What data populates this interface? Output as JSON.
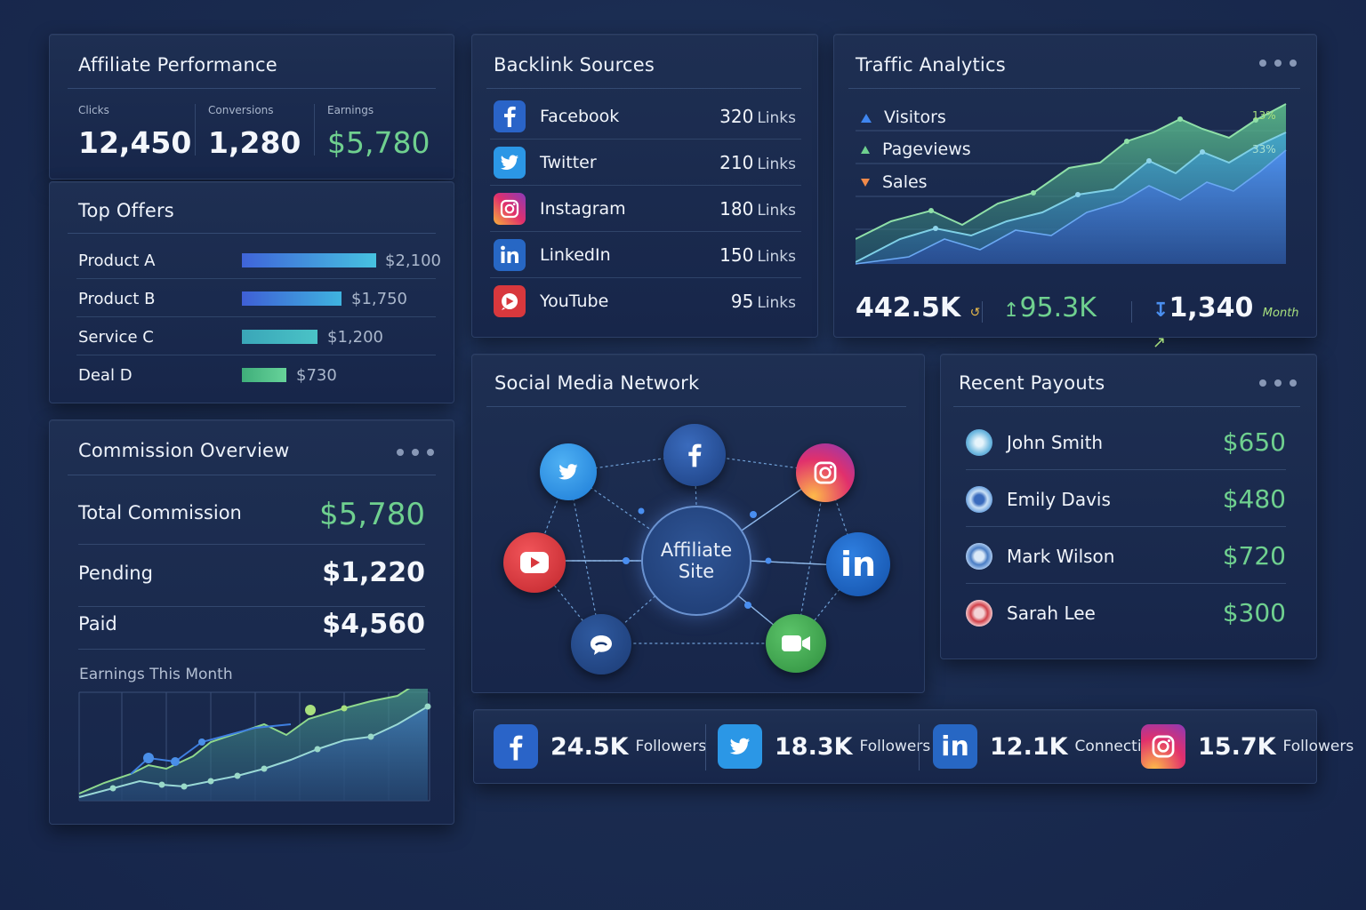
{
  "affiliate_performance": {
    "title": "Affiliate Performance",
    "metrics": [
      {
        "label": "Clicks",
        "value": "12,450"
      },
      {
        "label": "Conversions",
        "value": "1,280"
      },
      {
        "label": "Earnings",
        "value": "$5,780"
      }
    ]
  },
  "top_offers": {
    "title": "Top Offers",
    "items": [
      {
        "name": "Product A",
        "amount": "$2,100",
        "value": 2100
      },
      {
        "name": "Product B",
        "amount": "$1,750",
        "value": 1750
      },
      {
        "name": "Service C",
        "amount": "$1,200",
        "value": 1200
      },
      {
        "name": "Deal D",
        "amount": "$730",
        "value": 730
      }
    ]
  },
  "commission_overview": {
    "title": "Commission Overview",
    "total_label": "Total Commission",
    "total_value": "$5,780",
    "pending_label": "Pending",
    "pending_value": "$1,220",
    "paid_label": "Paid",
    "paid_value": "$4,560",
    "chart_title": "Earnings This Month"
  },
  "backlink_sources": {
    "title": "Backlink Sources",
    "unit": "Links",
    "items": [
      {
        "name": "Facebook",
        "count": "320",
        "icon": "facebook-icon"
      },
      {
        "name": "Twitter",
        "count": "210",
        "icon": "twitter-icon"
      },
      {
        "name": "Instagram",
        "count": "180",
        "icon": "instagram-icon"
      },
      {
        "name": "LinkedIn",
        "count": "150",
        "icon": "linkedin-icon"
      },
      {
        "name": "YouTube",
        "count": "95",
        "icon": "youtube-icon"
      }
    ]
  },
  "traffic_analytics": {
    "title": "Traffic Analytics",
    "legend": [
      "Visitors",
      "Pageviews",
      "Sales"
    ],
    "side_labels": [
      "13%",
      "33%"
    ],
    "stats": [
      {
        "value": "442.5K"
      },
      {
        "value": "95.3K"
      },
      {
        "value": "1,340",
        "suffix": "Month"
      }
    ]
  },
  "social_network": {
    "title": "Social Media Network",
    "center_line1": "Affiliate",
    "center_line2": "Site"
  },
  "recent_payouts": {
    "title": "Recent Payouts",
    "items": [
      {
        "name": "John Smith",
        "amount": "$650"
      },
      {
        "name": "Emily Davis",
        "amount": "$480"
      },
      {
        "name": "Mark Wilson",
        "amount": "$720"
      },
      {
        "name": "Sarah Lee",
        "amount": "$300"
      }
    ]
  },
  "social_followers": [
    {
      "value": "24.5K",
      "label": "Followers",
      "icon": "facebook-icon"
    },
    {
      "value": "18.3K",
      "label": "Followers",
      "icon": "twitter-icon"
    },
    {
      "value": "12.1K",
      "label": "Connections",
      "icon": "linkedin-icon"
    },
    {
      "value": "15.7K",
      "label": "Followers",
      "icon": "instagram-icon"
    }
  ],
  "colors": {
    "green": "#6fd08f",
    "facebook": "#1877f2",
    "twitter": "#1da1f2",
    "linkedin": "#0a66c2",
    "youtube": "#e0363b"
  }
}
